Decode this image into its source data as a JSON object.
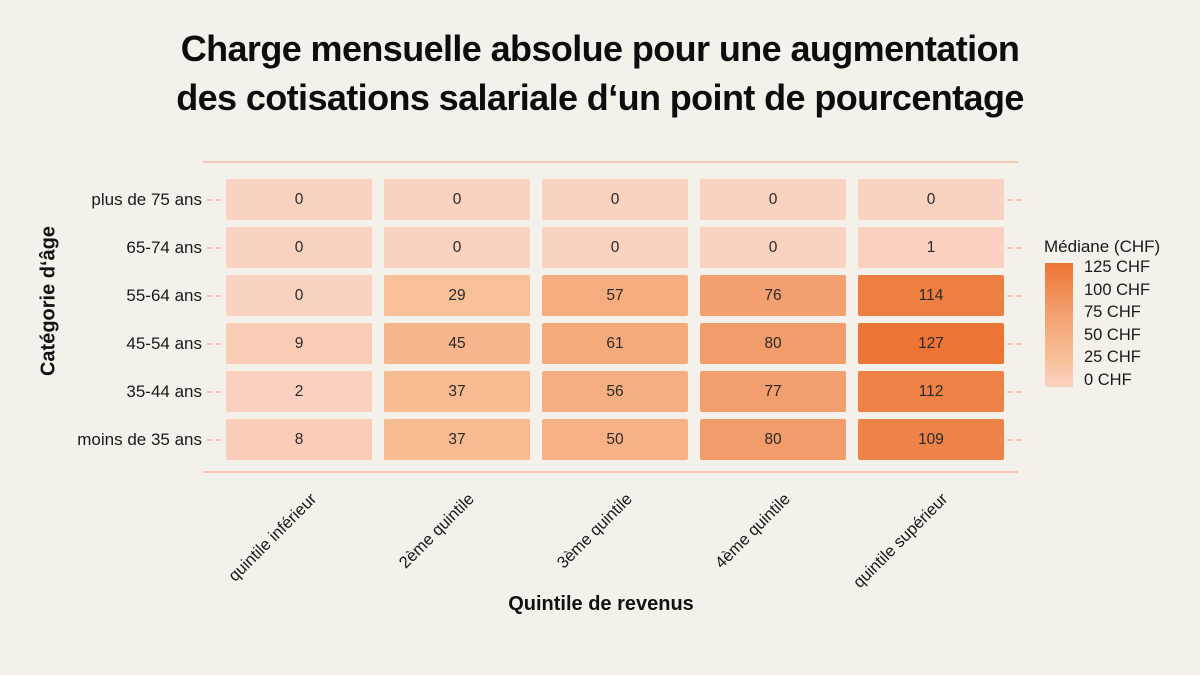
{
  "chart_data": {
    "type": "heatmap",
    "title": "Charge mensuelle absolue pour une augmentation des cotisations salariale d‘un point de pourcentage",
    "title_lines": [
      "Charge mensuelle absolue pour une augmentation",
      "des cotisations salariale d‘un point de pourcentage"
    ],
    "xlabel": "Quintile de revenus",
    "ylabel": "Catégorie d‘âge",
    "x_categories": [
      "quintile inférieur",
      "2ème quintile",
      "3ème quintile",
      "4ème quintile",
      "quintile supérieur"
    ],
    "y_categories": [
      "plus de 75 ans",
      "65-74 ans",
      "55-64 ans",
      "45-54 ans",
      "35-44 ans",
      "moins de 35 ans"
    ],
    "values": [
      [
        0,
        0,
        0,
        0,
        0
      ],
      [
        0,
        0,
        0,
        0,
        1
      ],
      [
        0,
        29,
        57,
        76,
        114
      ],
      [
        9,
        45,
        61,
        80,
        127
      ],
      [
        2,
        37,
        56,
        77,
        112
      ],
      [
        8,
        37,
        50,
        80,
        109
      ]
    ],
    "value_range": [
      0,
      127
    ],
    "legend": {
      "title": "Médiane (CHF)",
      "ticks": [
        "125 CHF",
        "100 CHF",
        "75 CHF",
        "50 CHF",
        "25 CHF",
        "0 CHF"
      ]
    },
    "colorscale": [
      {
        "v": 0,
        "c": "#FAD2C2"
      },
      {
        "v": 29,
        "c": "#F7C099"
      },
      {
        "v": 50,
        "c": "#F6B286"
      },
      {
        "v": 80,
        "c": "#F29C6B"
      },
      {
        "v": 127,
        "c": "#EC7434"
      }
    ],
    "colors": {
      "background": "#F3F1E9",
      "title_text": "#0D0D0D",
      "label_text": "#191919",
      "cell_text": "#2A2A2A",
      "frame_line": "#F4C7B6",
      "tick_dash": "#F4C8B8"
    },
    "grid": false,
    "legend_position": "right"
  }
}
